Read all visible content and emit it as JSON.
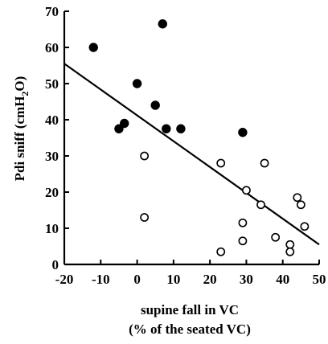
{
  "chart_data": {
    "type": "scatter",
    "ylabel": "Pdi sniff (cmH",
    "ylabel_sub": "2",
    "ylabel_tail": "O)",
    "xlabel_line1": "supine fall in VC",
    "xlabel_line2": "(% of the seated VC)",
    "xlim": [
      -20,
      50
    ],
    "ylim": [
      0,
      70
    ],
    "xticks": [
      -20,
      -10,
      0,
      10,
      20,
      30,
      40,
      50
    ],
    "yticks": [
      0,
      10,
      20,
      30,
      40,
      50,
      60,
      70
    ],
    "grid": false,
    "legend": "none",
    "series": [
      {
        "marker": "filled-circle",
        "color": "#000000",
        "points": [
          {
            "x": -12,
            "y": 60
          },
          {
            "x": 7,
            "y": 66.5
          },
          {
            "x": 0,
            "y": 50
          },
          {
            "x": 5,
            "y": 44
          },
          {
            "x": -5,
            "y": 37.5
          },
          {
            "x": -3.5,
            "y": 39
          },
          {
            "x": 8,
            "y": 37.5
          },
          {
            "x": 12,
            "y": 37.5
          },
          {
            "x": 29,
            "y": 36.5
          }
        ]
      },
      {
        "marker": "open-circle",
        "color": "#000000",
        "points": [
          {
            "x": 2,
            "y": 30
          },
          {
            "x": 2,
            "y": 13
          },
          {
            "x": 23,
            "y": 28
          },
          {
            "x": 35,
            "y": 28
          },
          {
            "x": 30,
            "y": 20.5
          },
          {
            "x": 34,
            "y": 16.5
          },
          {
            "x": 44,
            "y": 18.5
          },
          {
            "x": 45,
            "y": 16.5
          },
          {
            "x": 46,
            "y": 10.5
          },
          {
            "x": 29,
            "y": 11.5
          },
          {
            "x": 29,
            "y": 6.5
          },
          {
            "x": 38,
            "y": 7.5
          },
          {
            "x": 42,
            "y": 5.5
          },
          {
            "x": 42,
            "y": 3.5
          },
          {
            "x": 23,
            "y": 3.5
          }
        ]
      }
    ],
    "regression_line": {
      "x": [
        -20,
        50
      ],
      "y": [
        55.5,
        5.5
      ]
    }
  }
}
